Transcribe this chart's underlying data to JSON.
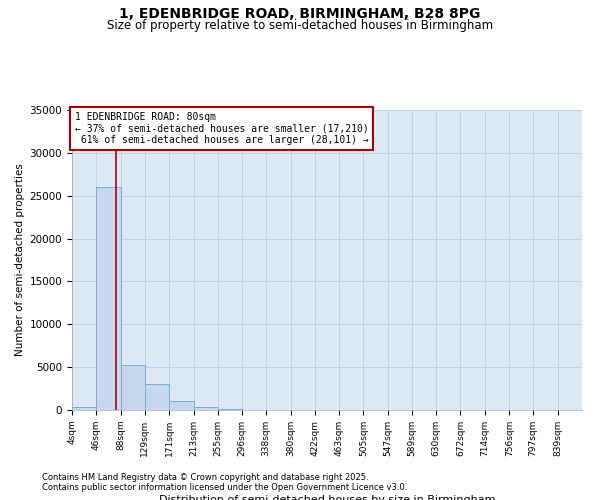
{
  "title": "1, EDENBRIDGE ROAD, BIRMINGHAM, B28 8PG",
  "subtitle": "Size of property relative to semi-detached houses in Birmingham",
  "xlabel": "Distribution of semi-detached houses by size in Birmingham",
  "ylabel": "Number of semi-detached properties",
  "property_size": 80,
  "property_label": "1 EDENBRIDGE ROAD: 80sqm",
  "smaller_pct": 37,
  "smaller_count": 17210,
  "larger_pct": 61,
  "larger_count": 28101,
  "bin_edges": [
    4,
    46,
    88,
    129,
    171,
    213,
    255,
    296,
    338,
    380,
    422,
    463,
    505,
    547,
    589,
    630,
    672,
    714,
    756,
    797,
    839
  ],
  "bin_counts": [
    400,
    26000,
    5300,
    3000,
    1100,
    300,
    100,
    50,
    20,
    10,
    5,
    3,
    2,
    1,
    1,
    1,
    1,
    1,
    1,
    1
  ],
  "bar_color": "#c5d8ed",
  "bar_edge_color": "#7aadd4",
  "vline_color": "#aa0000",
  "annotation_box_edge_color": "#aa0000",
  "background_color": "#ffffff",
  "plot_bg_color": "#dce9f5",
  "grid_color": "#b8cfe0",
  "ylim": [
    0,
    35000
  ],
  "yticks": [
    0,
    5000,
    10000,
    15000,
    20000,
    25000,
    30000,
    35000
  ],
  "footnote1": "Contains HM Land Registry data © Crown copyright and database right 2025.",
  "footnote2": "Contains public sector information licensed under the Open Government Licence v3.0."
}
